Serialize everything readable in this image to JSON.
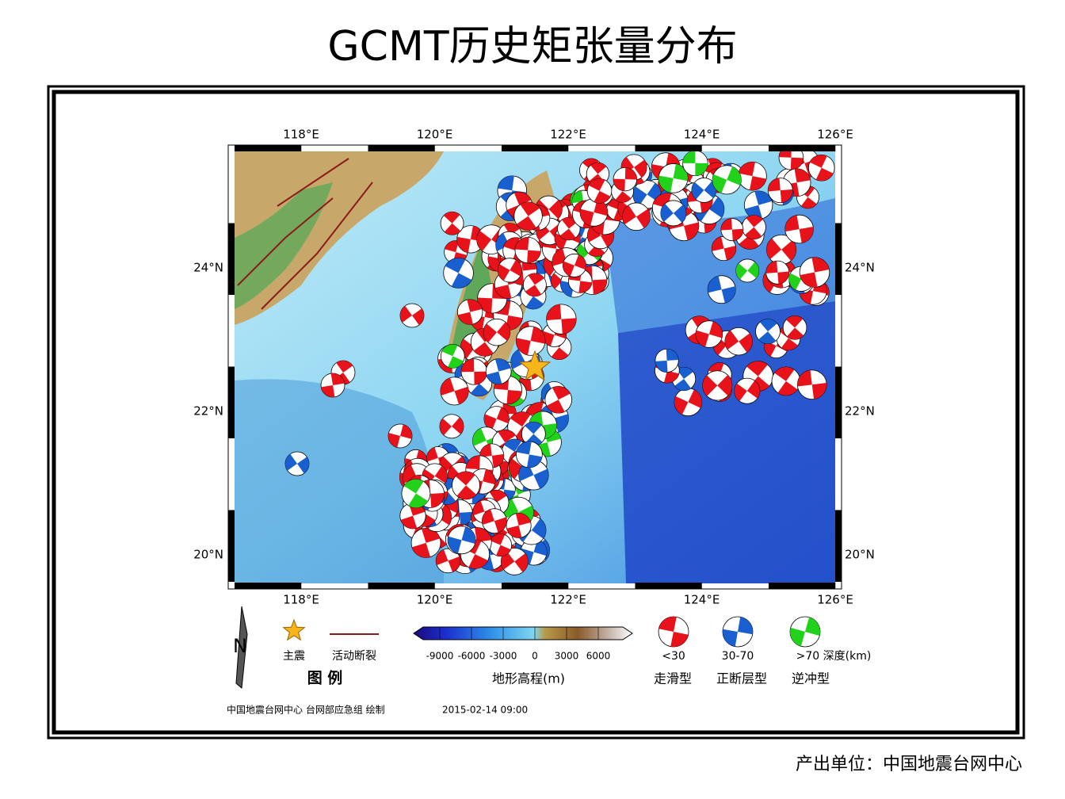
{
  "header": {
    "title": "GCMT历史矩张量分布"
  },
  "map": {
    "lon_labels": [
      "118°E",
      "120°E",
      "122°E",
      "124°E",
      "126°E"
    ],
    "lat_labels": [
      "24°N",
      "22°N",
      "20°N"
    ]
  },
  "legend": {
    "north": "N",
    "mainshock": "主震",
    "fault": "活动断裂",
    "legend_title": "图 例",
    "colorbar_ticks": [
      "-9000",
      "-6000",
      "-3000",
      "0",
      "3000",
      "6000"
    ],
    "colorbar_title": "地形高程(m)",
    "depth_labels": [
      "<30",
      "30-70",
      ">70 深度(km)"
    ],
    "mechanism_labels": [
      "走滑型",
      "正断层型",
      "逆冲型"
    ]
  },
  "credit": {
    "maker": "中国地震台网中心 台网部应急组 绘制",
    "time": "2015-02-14 09:00"
  },
  "footer": {
    "producer": "产出单位：中国地震台网中心"
  }
}
